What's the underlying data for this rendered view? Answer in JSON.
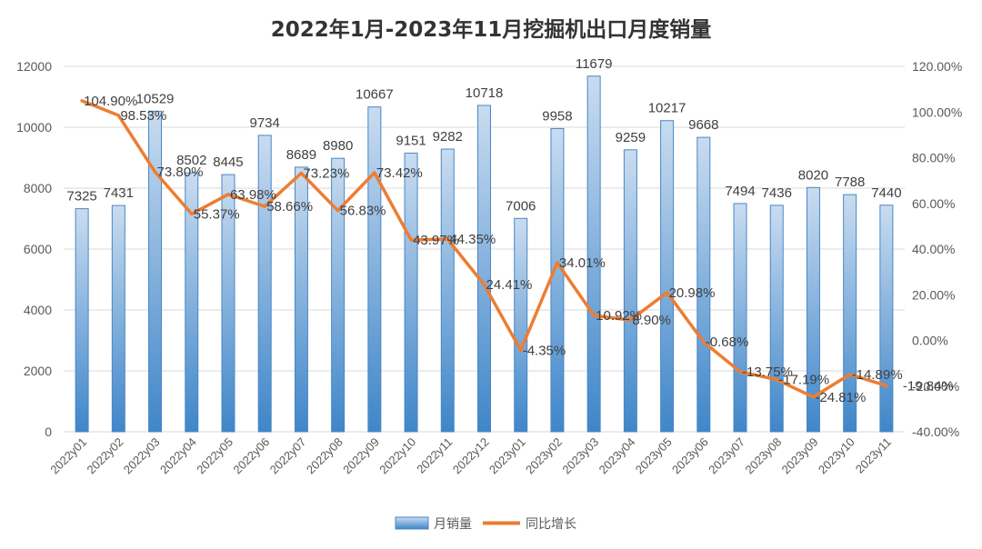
{
  "chart_data": {
    "type": "bar+line",
    "title": "2022年1月-2023年11月挖掘机出口月度销量",
    "categories": [
      "2022y01",
      "2022y02",
      "2022y03",
      "2022y04",
      "2022y05",
      "2022y06",
      "2022y07",
      "2022y08",
      "2022y09",
      "2022y10",
      "2022y11",
      "2022y12",
      "2023y01",
      "2023y02",
      "2023y03",
      "2023y04",
      "2023y05",
      "2023y06",
      "2023y07",
      "2023y08",
      "2023y09",
      "2023y10",
      "2023y11"
    ],
    "series": [
      {
        "name": "月销量",
        "type": "bar",
        "axis": "left",
        "values": [
          7325,
          7431,
          10529,
          8502,
          8445,
          9734,
          8689,
          8980,
          10667,
          9151,
          9282,
          10718,
          7006,
          9958,
          11679,
          9259,
          10217,
          9668,
          7494,
          7436,
          8020,
          7788,
          7440
        ],
        "labels": [
          "7325",
          "7431",
          "10529",
          "8502",
          "8445",
          "9734",
          "8689",
          "8980",
          "10667",
          "9151",
          "9282",
          "10718",
          "7006",
          "9958",
          "11679",
          "9259",
          "10217",
          "9668",
          "7494",
          "7436",
          "8020",
          "7788",
          "7440"
        ]
      },
      {
        "name": "同比增长",
        "type": "line",
        "axis": "right",
        "values": [
          104.9,
          98.53,
          73.8,
          55.37,
          63.98,
          58.66,
          73.23,
          56.83,
          73.42,
          43.97,
          44.35,
          24.41,
          -4.35,
          34.01,
          10.92,
          8.9,
          20.98,
          -0.68,
          -13.75,
          -17.19,
          -24.81,
          -14.89,
          -19.84
        ],
        "labels": [
          "104.90%",
          "98.53%",
          "73.80%",
          "55.37%",
          "63.98%",
          "58.66%",
          "73.23%",
          "56.83%",
          "73.42%",
          "43.97%",
          "44.35%",
          "24.41%",
          "-4.35%",
          "34.01%",
          "10.92%",
          "8.90%",
          "20.98%",
          "-0.68%",
          "-13.75%",
          "-17.19%",
          "-24.81%",
          "-14.89%",
          "-19.84%"
        ]
      }
    ],
    "left_axis": {
      "min": 0,
      "max": 12000,
      "step": 2000,
      "ticks": [
        "0",
        "2000",
        "4000",
        "6000",
        "8000",
        "10000",
        "12000"
      ]
    },
    "right_axis": {
      "min": -40,
      "max": 120,
      "step": 20,
      "ticks": [
        "-40.00%",
        "-20.00%",
        "0.00%",
        "20.00%",
        "40.00%",
        "60.00%",
        "80.00%",
        "100.00%",
        "120.00%"
      ]
    },
    "grid": true,
    "legend_position": "bottom",
    "colors": {
      "bar_top": "#c9dcf0",
      "bar_bottom": "#3f86c9",
      "bar_border": "#4a86c5",
      "line": "#ed7d31",
      "grid": "#d9d9d9",
      "text": "#404040"
    }
  }
}
